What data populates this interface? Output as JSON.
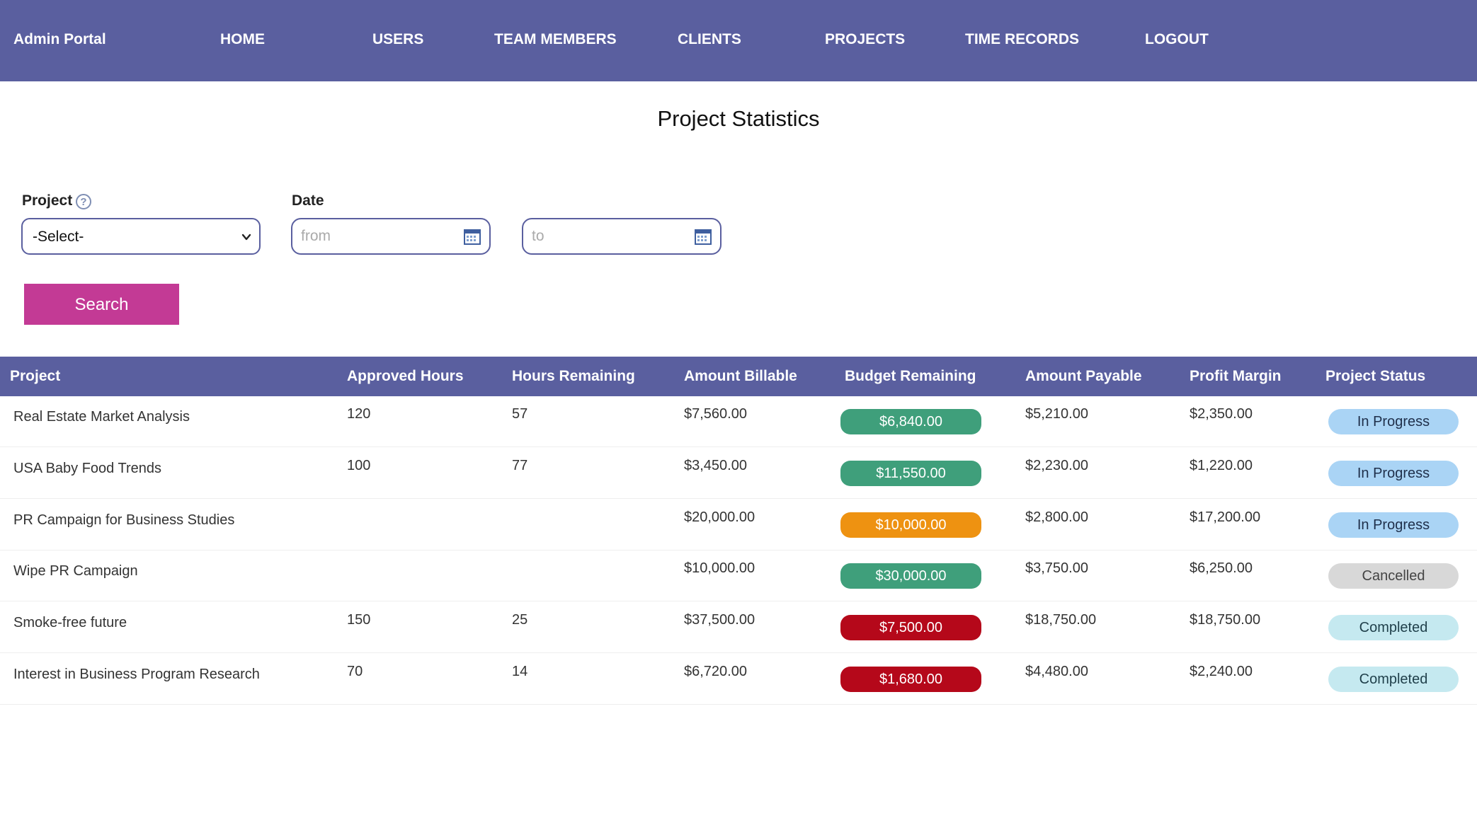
{
  "app": {
    "title": "Admin Portal"
  },
  "nav": {
    "items": [
      "HOME",
      "USERS",
      "TEAM MEMBERS",
      "CLIENTS",
      "PROJECTS",
      "TIME RECORDS",
      "LOGOUT"
    ]
  },
  "page": {
    "title": "Project Statistics"
  },
  "filters": {
    "project_label": "Project",
    "help_symbol": "?",
    "project_selected": "-Select-",
    "date_label": "Date",
    "from_placeholder": "from",
    "to_placeholder": "to",
    "search_label": "Search"
  },
  "table": {
    "headers": [
      "Project",
      "Approved Hours",
      "Hours Remaining",
      "Amount Billable",
      "Budget Remaining",
      "Amount Payable",
      "Profit Margin",
      "Project Status"
    ],
    "rows": [
      {
        "project": "Real Estate Market Analysis",
        "approved_hours": "120",
        "hours_remaining": "57",
        "amount_billable": "$7,560.00",
        "budget_remaining": "$6,840.00",
        "budget_color": "#3f9f7b",
        "amount_payable": "$5,210.00",
        "profit_margin": "$2,350.00",
        "status": "In Progress",
        "status_bg": "#aad4f5",
        "status_color": "#1f2f4a"
      },
      {
        "project": "USA Baby Food Trends",
        "approved_hours": "100",
        "hours_remaining": "77",
        "amount_billable": "$3,450.00",
        "budget_remaining": "$11,550.00",
        "budget_color": "#3f9f7b",
        "amount_payable": "$2,230.00",
        "profit_margin": "$1,220.00",
        "status": "In Progress",
        "status_bg": "#aad4f5",
        "status_color": "#1f2f4a"
      },
      {
        "project": "PR Campaign for Business Studies",
        "approved_hours": "",
        "hours_remaining": "",
        "amount_billable": "$20,000.00",
        "budget_remaining": "$10,000.00",
        "budget_color": "#ee9211",
        "amount_payable": "$2,800.00",
        "profit_margin": "$17,200.00",
        "status": "In Progress",
        "status_bg": "#aad4f5",
        "status_color": "#1f2f4a"
      },
      {
        "project": "Wipe PR Campaign",
        "approved_hours": "",
        "hours_remaining": "",
        "amount_billable": "$10,000.00",
        "budget_remaining": "$30,000.00",
        "budget_color": "#3f9f7b",
        "amount_payable": "$3,750.00",
        "profit_margin": "$6,250.00",
        "status": "Cancelled",
        "status_bg": "#d8d8d8",
        "status_color": "#444444"
      },
      {
        "project": "Smoke-free future",
        "approved_hours": "150",
        "hours_remaining": "25",
        "amount_billable": "$37,500.00",
        "budget_remaining": "$7,500.00",
        "budget_color": "#b5081a",
        "amount_payable": "$18,750.00",
        "profit_margin": "$18,750.00",
        "status": "Completed",
        "status_bg": "#c5e9f0",
        "status_color": "#1f3f4a"
      },
      {
        "project": "Interest in Business Program Research",
        "approved_hours": "70",
        "hours_remaining": "14",
        "amount_billable": "$6,720.00",
        "budget_remaining": "$1,680.00",
        "budget_color": "#b5081a",
        "amount_payable": "$4,480.00",
        "profit_margin": "$2,240.00",
        "status": "Completed",
        "status_bg": "#c5e9f0",
        "status_color": "#1f3f4a"
      }
    ]
  }
}
